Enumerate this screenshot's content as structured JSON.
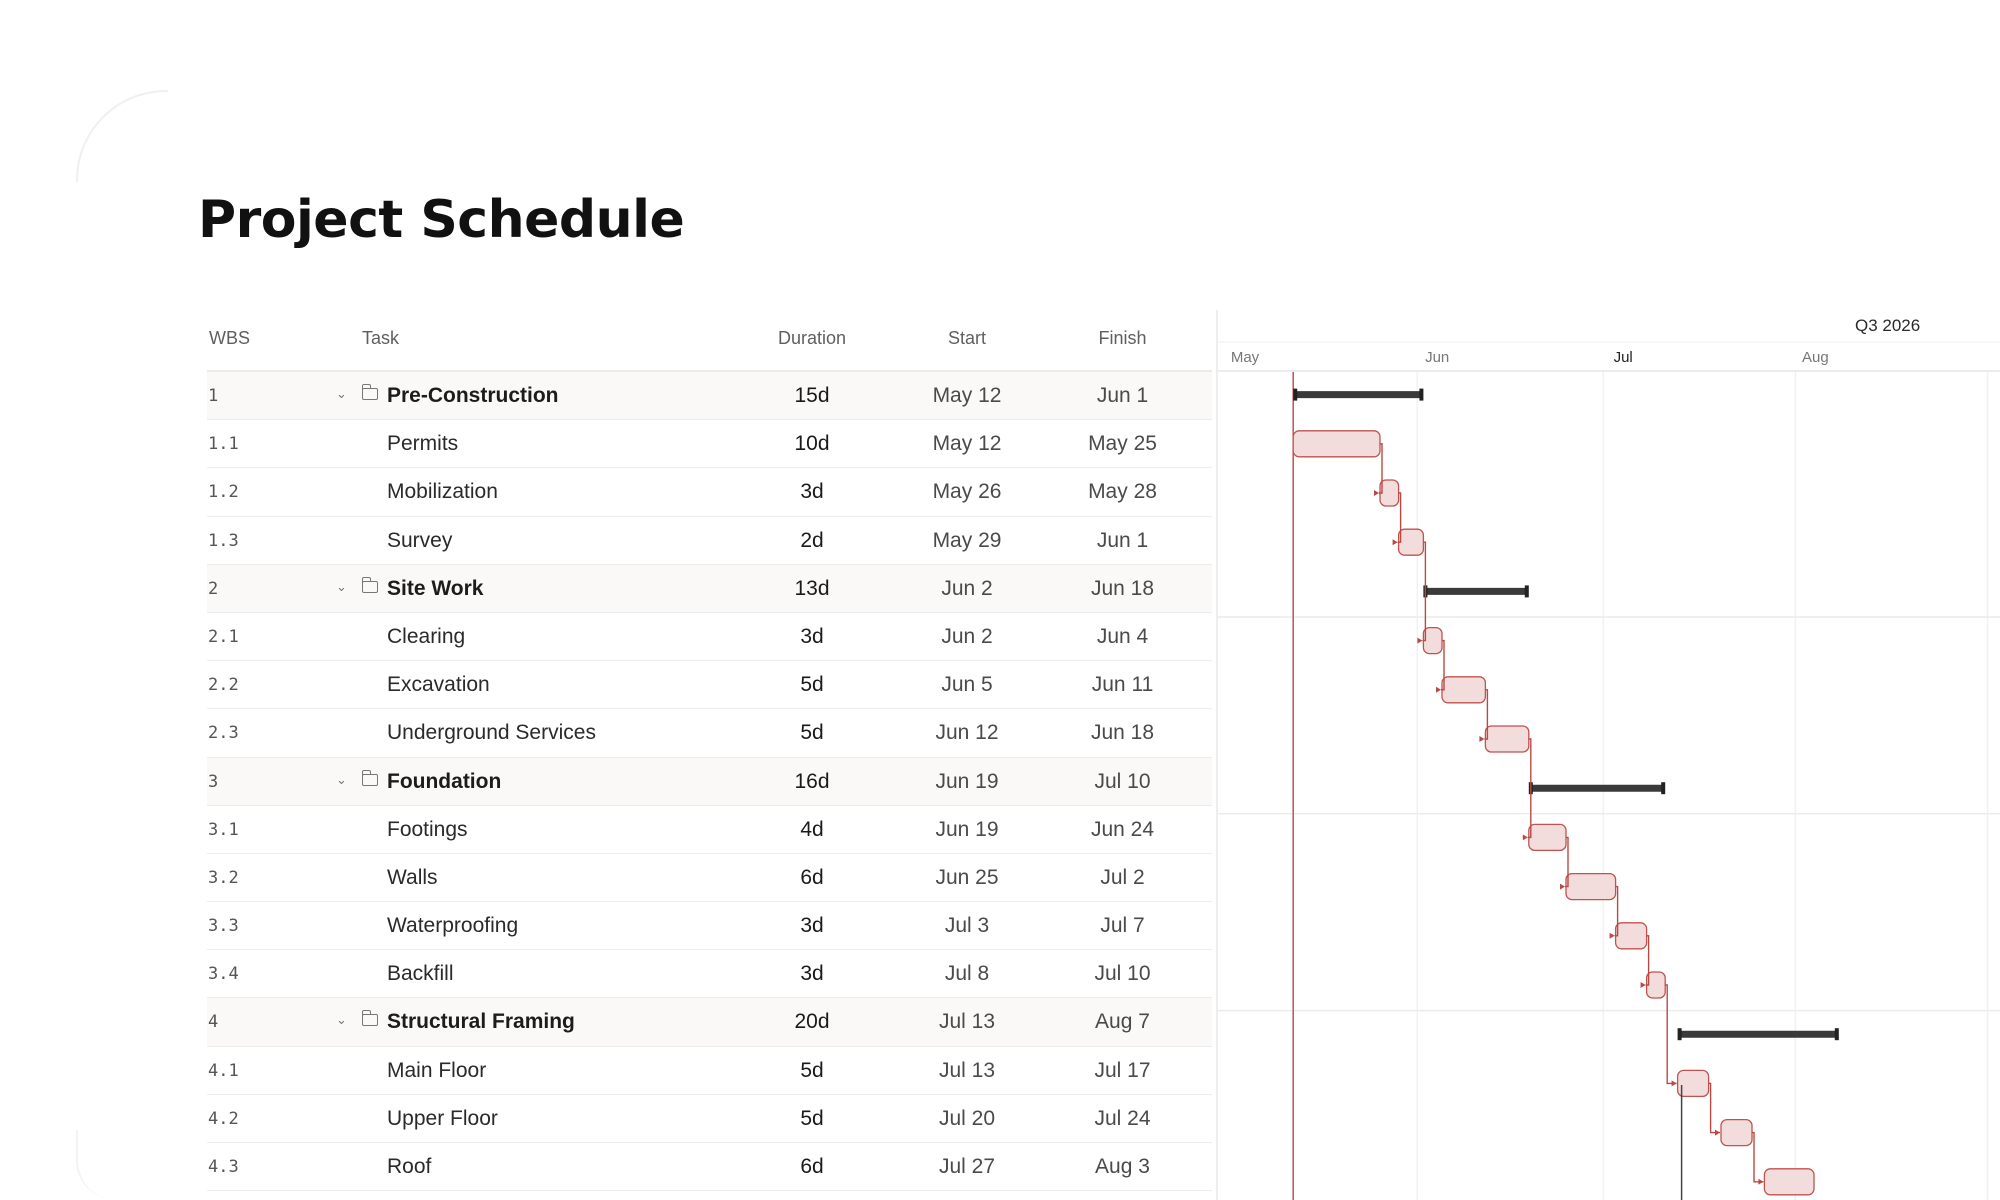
{
  "page": {
    "title": "Project Schedule"
  },
  "table": {
    "headers": {
      "wbs": "WBS",
      "task": "Task",
      "duration": "Duration",
      "start": "Start",
      "finish": "Finish"
    },
    "rows": [
      {
        "wbs": "1",
        "task": "Pre-Construction",
        "duration": "15d",
        "start": "May 12",
        "finish": "Jun 1",
        "summary": true
      },
      {
        "wbs": "1.1",
        "task": "Permits",
        "duration": "10d",
        "start": "May 12",
        "finish": "May 25",
        "summary": false
      },
      {
        "wbs": "1.2",
        "task": "Mobilization",
        "duration": "3d",
        "start": "May 26",
        "finish": "May 28",
        "summary": false
      },
      {
        "wbs": "1.3",
        "task": "Survey",
        "duration": "2d",
        "start": "May 29",
        "finish": "Jun 1",
        "summary": false
      },
      {
        "wbs": "2",
        "task": "Site Work",
        "duration": "13d",
        "start": "Jun 2",
        "finish": "Jun 18",
        "summary": true
      },
      {
        "wbs": "2.1",
        "task": "Clearing",
        "duration": "3d",
        "start": "Jun 2",
        "finish": "Jun 4",
        "summary": false
      },
      {
        "wbs": "2.2",
        "task": "Excavation",
        "duration": "5d",
        "start": "Jun 5",
        "finish": "Jun 11",
        "summary": false
      },
      {
        "wbs": "2.3",
        "task": "Underground Services",
        "duration": "5d",
        "start": "Jun 12",
        "finish": "Jun 18",
        "summary": false
      },
      {
        "wbs": "3",
        "task": "Foundation",
        "duration": "16d",
        "start": "Jun 19",
        "finish": "Jul 10",
        "summary": true
      },
      {
        "wbs": "3.1",
        "task": "Footings",
        "duration": "4d",
        "start": "Jun 19",
        "finish": "Jun 24",
        "summary": false
      },
      {
        "wbs": "3.2",
        "task": "Walls",
        "duration": "6d",
        "start": "Jun 25",
        "finish": "Jul 2",
        "summary": false
      },
      {
        "wbs": "3.3",
        "task": "Waterproofing",
        "duration": "3d",
        "start": "Jul 3",
        "finish": "Jul 7",
        "summary": false
      },
      {
        "wbs": "3.4",
        "task": "Backfill",
        "duration": "3d",
        "start": "Jul 8",
        "finish": "Jul 10",
        "summary": false
      },
      {
        "wbs": "4",
        "task": "Structural Framing",
        "duration": "20d",
        "start": "Jul 13",
        "finish": "Aug 7",
        "summary": true
      },
      {
        "wbs": "4.1",
        "task": "Main Floor",
        "duration": "5d",
        "start": "Jul 13",
        "finish": "Jul 17",
        "summary": false
      },
      {
        "wbs": "4.2",
        "task": "Upper Floor",
        "duration": "5d",
        "start": "Jul 20",
        "finish": "Jul 24",
        "summary": false
      },
      {
        "wbs": "4.3",
        "task": "Roof",
        "duration": "6d",
        "start": "Jul 27",
        "finish": "Aug 3",
        "summary": false
      }
    ]
  },
  "gantt": {
    "quarter_label": "Q3 2026",
    "months": [
      "May",
      "Jun",
      "Jul",
      "Aug"
    ],
    "current_month": "Jul",
    "colors": {
      "task_bar": "#f2dcdc",
      "task_border": "#c0524f",
      "summary_bar": "#3a3a3a",
      "today_line": "#c0524f",
      "link": "#b84a44"
    }
  }
}
